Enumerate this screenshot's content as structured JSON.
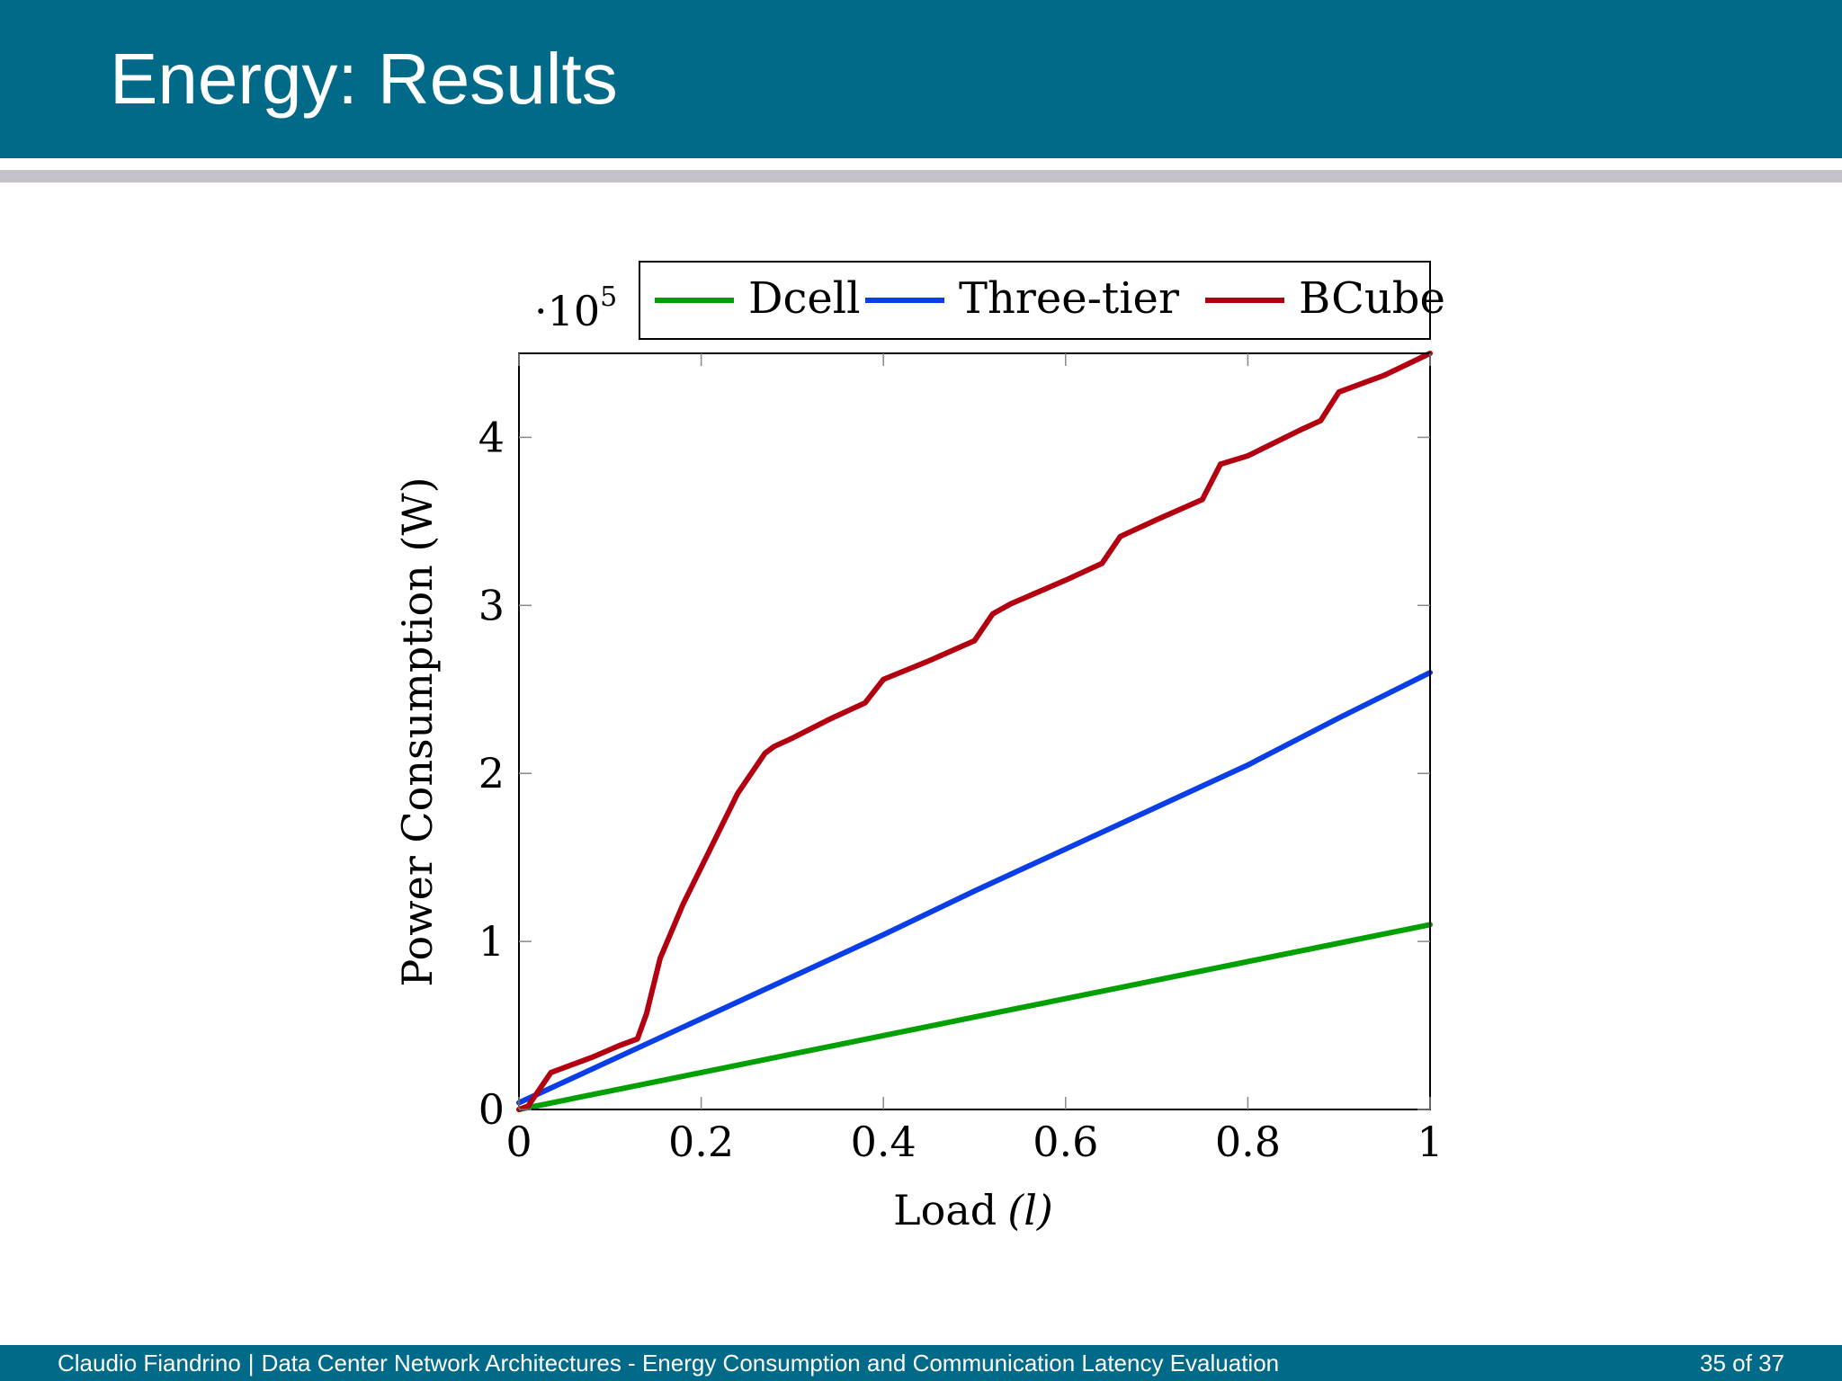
{
  "slide": {
    "title": "Energy: Results",
    "footer_author": "Claudio Fiandrino",
    "footer_separator": "|",
    "footer_subject": "Data Center Network Architectures - Energy Consumption and Communication Latency Evaluation",
    "page_current": "35",
    "page_of": "of",
    "page_total": "37"
  },
  "colors": {
    "header_bg": "#016a88",
    "rule": "#c4c1cb",
    "dcell": "#00a000",
    "three_tier": "#0a3fe8",
    "bcube": "#b30011"
  },
  "chart_data": {
    "type": "line",
    "title": "",
    "xlabel_text": "Load",
    "xlabel_symbol": "(l)",
    "ylabel": "Power Consumption (W)",
    "y_multiplier_base": "·10",
    "y_multiplier_exp": "5",
    "xlim": [
      0,
      1
    ],
    "ylim": [
      0,
      4.5
    ],
    "xticks": [
      0,
      0.2,
      0.4,
      0.6,
      0.8,
      1
    ],
    "xtick_labels": [
      "0",
      "0.2",
      "0.4",
      "0.6",
      "0.8",
      "1"
    ],
    "yticks": [
      0,
      1,
      2,
      3,
      4
    ],
    "ytick_labels": [
      "0",
      "1",
      "2",
      "3",
      "4"
    ],
    "grid": false,
    "legend_position": "top, above plot",
    "series": [
      {
        "name": "Dcell",
        "color": "#00a000",
        "x": [
          0,
          0.1,
          0.2,
          0.3,
          0.4,
          0.5,
          0.6,
          0.7,
          0.8,
          0.9,
          1.0
        ],
        "y": [
          0,
          0.11,
          0.22,
          0.33,
          0.44,
          0.55,
          0.66,
          0.77,
          0.88,
          0.99,
          1.1
        ]
      },
      {
        "name": "Three-tier",
        "color": "#0a3fe8",
        "x": [
          0,
          0.1,
          0.2,
          0.3,
          0.4,
          0.5,
          0.6,
          0.7,
          0.8,
          0.9,
          1.0
        ],
        "y": [
          0.04,
          0.29,
          0.54,
          0.79,
          1.04,
          1.3,
          1.55,
          1.8,
          2.05,
          2.33,
          2.6
        ]
      },
      {
        "name": "BCube",
        "color": "#b30011",
        "x": [
          0,
          0.01,
          0.02,
          0.035,
          0.05,
          0.08,
          0.11,
          0.13,
          0.14,
          0.155,
          0.18,
          0.21,
          0.24,
          0.27,
          0.28,
          0.3,
          0.34,
          0.38,
          0.4,
          0.45,
          0.5,
          0.52,
          0.54,
          0.6,
          0.64,
          0.66,
          0.7,
          0.75,
          0.77,
          0.8,
          0.86,
          0.88,
          0.9,
          0.95,
          1.0
        ],
        "y": [
          0,
          0.02,
          0.1,
          0.22,
          0.25,
          0.31,
          0.38,
          0.42,
          0.57,
          0.9,
          1.22,
          1.55,
          1.88,
          2.12,
          2.16,
          2.21,
          2.32,
          2.42,
          2.56,
          2.67,
          2.79,
          2.95,
          3.01,
          3.15,
          3.25,
          3.41,
          3.51,
          3.63,
          3.84,
          3.89,
          4.05,
          4.1,
          4.27,
          4.37,
          4.5
        ]
      }
    ]
  }
}
